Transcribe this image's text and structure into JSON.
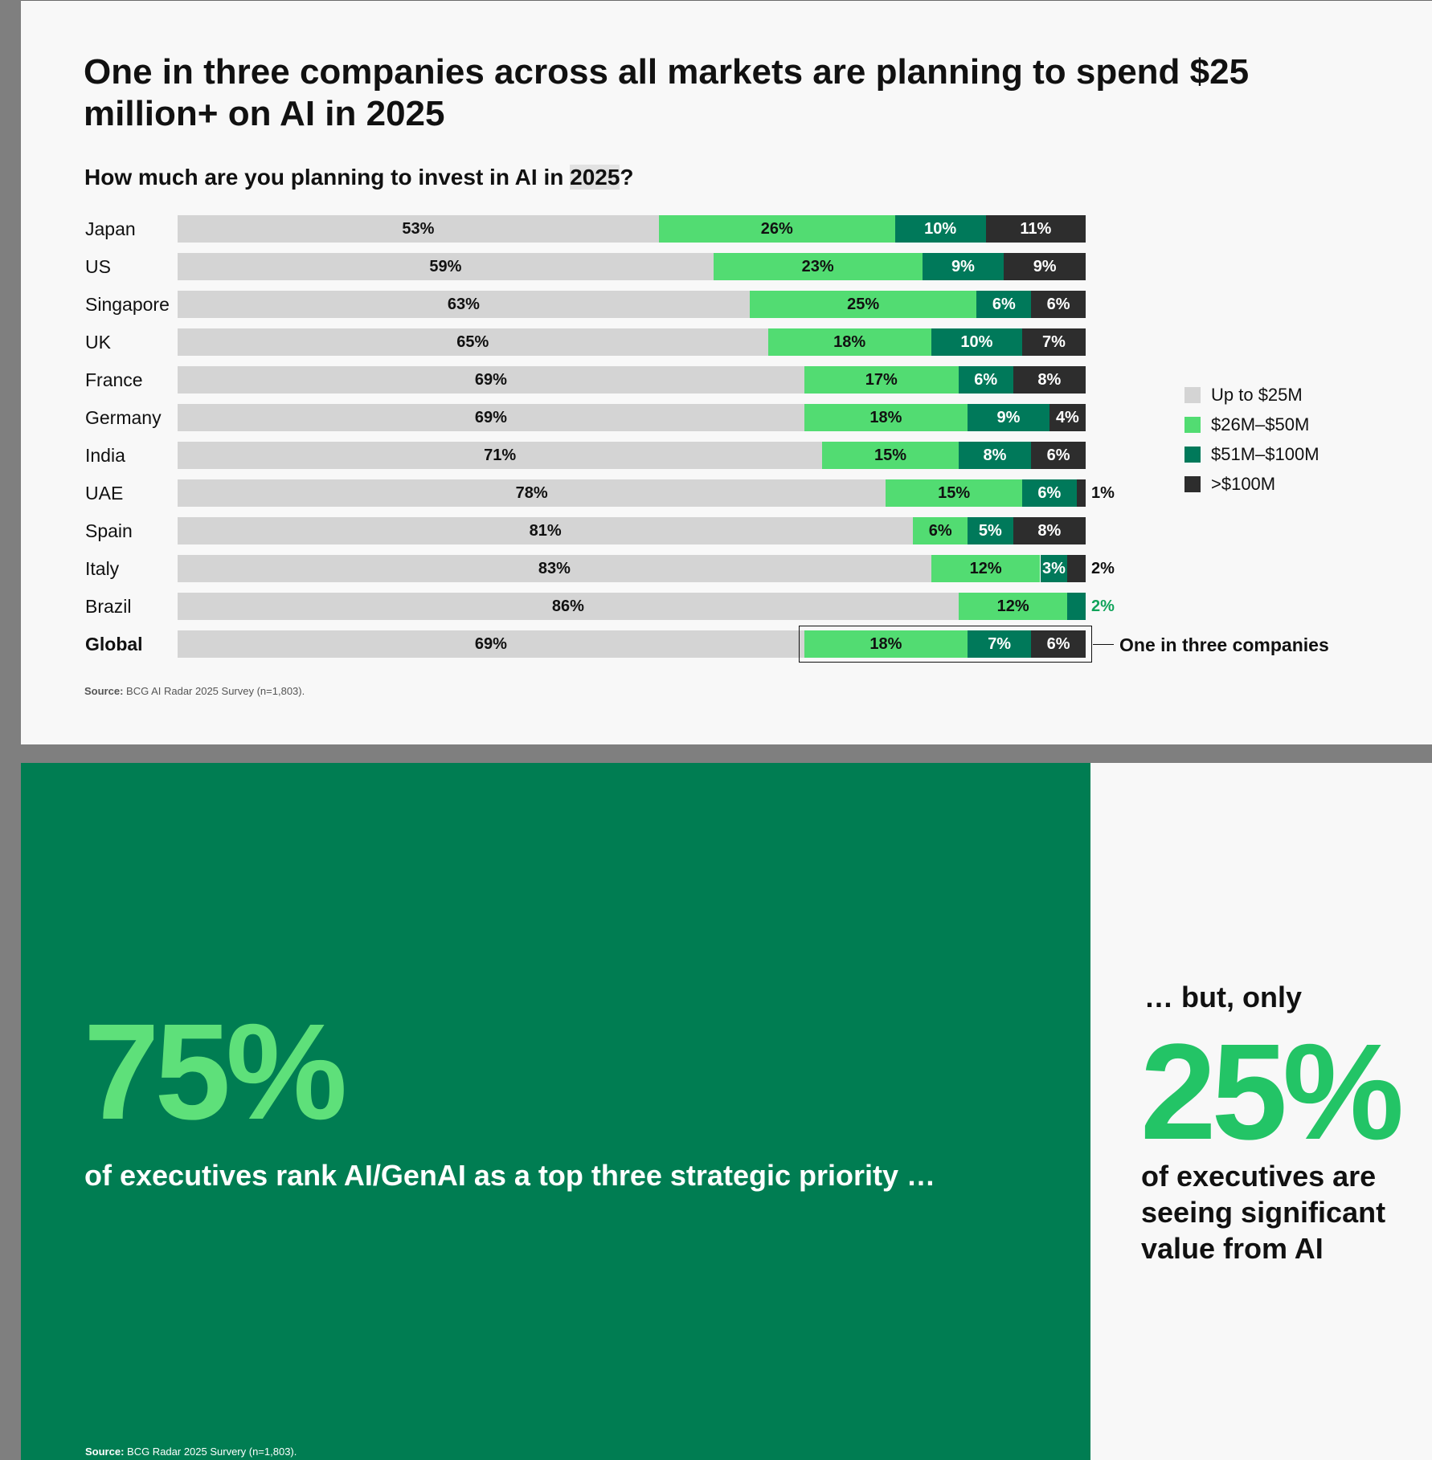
{
  "slide1": {
    "title": "One in three companies across all markets are planning to spend $25 million+ on AI in 2025",
    "question_prefix": "How much are you planning to invest in AI in ",
    "question_year": "2025",
    "question_suffix": "?",
    "callout": "One in three companies",
    "source_label": "Source:",
    "source_text": " BCG AI Radar 2025 Survey (n=1,803)."
  },
  "colors": {
    "up_to_25m": "#d4d4d4",
    "m26_50": "#52dc72",
    "m51_100": "#00795a",
    "over_100m": "#2d2d2d",
    "label_dark": "#111111",
    "label_light": "#ffffff",
    "outside_green": "#10a35a"
  },
  "chart_data": {
    "type": "bar",
    "orientation": "horizontal",
    "stacked": true,
    "title": "How much are you planning to invest in AI in 2025?",
    "xlim": [
      0,
      100
    ],
    "unit": "%",
    "legend": [
      "Up to $25M",
      "$26M–$50M",
      "$51M–$100M",
      ">$100M"
    ],
    "legend_position": "right",
    "categories": [
      "Japan",
      "US",
      "Singapore",
      "UK",
      "France",
      "Germany",
      "India",
      "UAE",
      "Spain",
      "Italy",
      "Brazil",
      "Global"
    ],
    "series": [
      {
        "name": "Up to $25M",
        "values": [
          53,
          59,
          63,
          65,
          69,
          69,
          71,
          78,
          81,
          83,
          86,
          69
        ]
      },
      {
        "name": "$26M–$50M",
        "values": [
          26,
          23,
          25,
          18,
          17,
          18,
          15,
          15,
          6,
          12,
          12,
          18
        ]
      },
      {
        "name": "$51M–$100M",
        "values": [
          10,
          9,
          6,
          10,
          6,
          9,
          8,
          6,
          5,
          3,
          2,
          7
        ]
      },
      {
        "name": ">$100M",
        "values": [
          11,
          9,
          6,
          7,
          8,
          4,
          6,
          1,
          8,
          2,
          0,
          6
        ]
      }
    ],
    "segment_labels": [
      [
        "53%",
        "26%",
        "10%",
        "11%"
      ],
      [
        "59%",
        "23%",
        "9%",
        "9%"
      ],
      [
        "63%",
        "25%",
        "6%",
        "6%"
      ],
      [
        "65%",
        "18%",
        "10%",
        "7%"
      ],
      [
        "69%",
        "17%",
        "6%",
        "8%"
      ],
      [
        "69%",
        "18%",
        "9%",
        "4%"
      ],
      [
        "71%",
        "15%",
        "8%",
        "6%"
      ],
      [
        "78%",
        "15%",
        "6%",
        "1%"
      ],
      [
        "81%",
        "6%",
        "5%",
        "8%"
      ],
      [
        "83%",
        "12%",
        "3%",
        "2%"
      ],
      [
        "86%",
        "12%",
        "2%",
        ""
      ],
      [
        "69%",
        "18%",
        "7%",
        "6%"
      ]
    ],
    "outside_labels": [
      {
        "row": 7,
        "series": 3,
        "text": "1%"
      },
      {
        "row": 9,
        "series": 3,
        "text": "2%"
      },
      {
        "row": 10,
        "series": 2,
        "text": "2%"
      }
    ],
    "bold_categories": [
      "Global"
    ]
  },
  "slide2": {
    "left_big": "75%",
    "left_text": "of executives rank AI/GenAI as a  top three strategic priority …",
    "left_source_label": "Source:",
    "left_source_text": " BCG Radar 2025 Survery (n=1,803).",
    "right_pre": "… but, only",
    "right_big": "25%",
    "right_text": "of executives are seeing significant value from AI"
  }
}
